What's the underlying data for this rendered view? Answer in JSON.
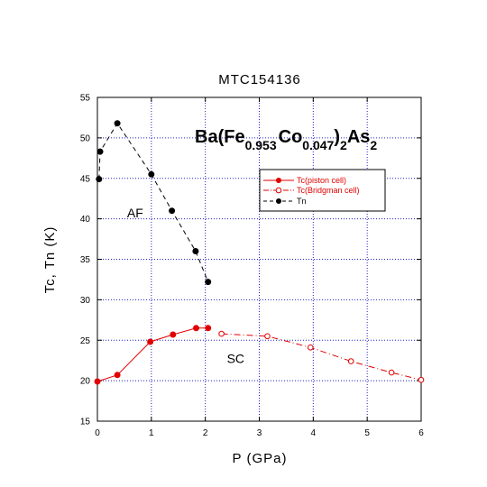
{
  "chart_data": {
    "type": "scatter",
    "title": "MTC154136",
    "xlabel": "P (GPa)",
    "ylabel": "Tc, Tn (K)",
    "xlim": [
      0,
      6
    ],
    "ylim": [
      15,
      55
    ],
    "x_ticks": [
      0,
      1,
      2,
      3,
      4,
      5,
      6
    ],
    "y_ticks": [
      15,
      20,
      25,
      30,
      35,
      40,
      45,
      50,
      55
    ],
    "grid": true,
    "legend_position": "upper-right",
    "formula": {
      "parts": [
        "Ba(Fe",
        "0.953",
        "Co",
        "0.047",
        ")",
        "2",
        "As",
        "2"
      ]
    },
    "annotations": [
      {
        "text": "AF",
        "x": 0.55,
        "y": 40.2
      },
      {
        "text": "SC",
        "x": 2.4,
        "y": 22.2
      }
    ],
    "series": [
      {
        "name": "Tc(piston cell)",
        "color": "#e00000",
        "marker": "filled-circle",
        "line": "solid",
        "x": [
          0.0,
          0.37,
          0.98,
          1.4,
          1.83,
          2.05
        ],
        "y": [
          19.9,
          20.7,
          24.8,
          25.7,
          26.5,
          26.5
        ]
      },
      {
        "name": "Tc(Bridgman cell)",
        "color": "#e00000",
        "marker": "open-circle",
        "line": "dashdot",
        "x": [
          2.3,
          3.15,
          3.95,
          4.7,
          5.45,
          6.0
        ],
        "y": [
          25.8,
          25.5,
          24.1,
          22.4,
          21.0,
          20.1
        ]
      },
      {
        "name": "Tn",
        "color": "#000000",
        "marker": "filled-circle",
        "line": "dashed",
        "x": [
          0.03,
          0.05,
          0.37,
          1.0,
          1.38,
          1.82,
          2.05
        ],
        "y": [
          44.9,
          48.3,
          51.8,
          45.5,
          41.0,
          36.0,
          32.2
        ]
      }
    ]
  }
}
